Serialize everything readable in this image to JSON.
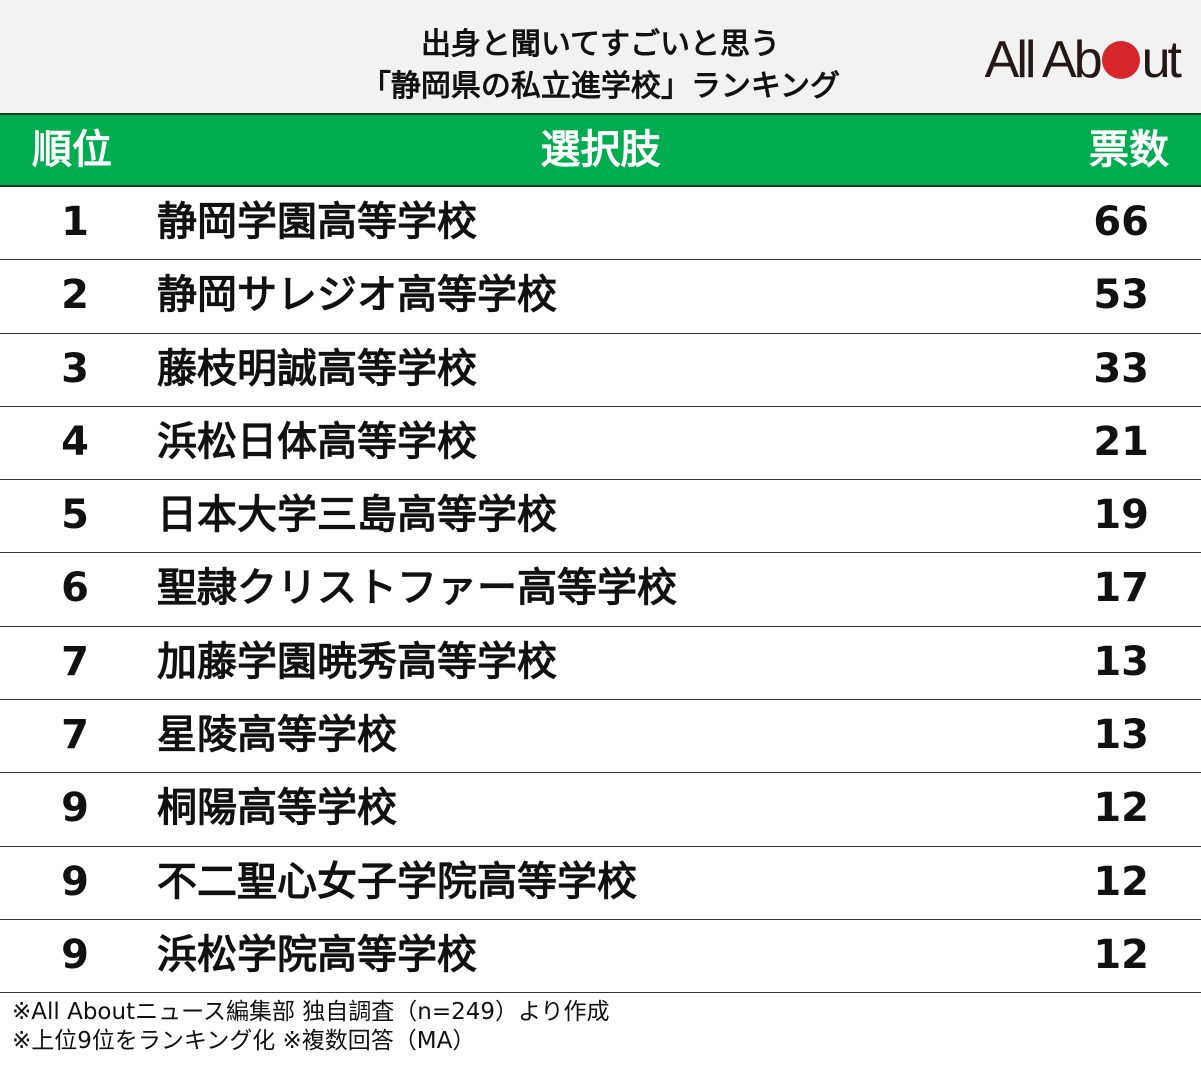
{
  "title": {
    "line1": "出身と聞いてすごいと思う",
    "line2": "「静岡県の私立進学校」ランキング"
  },
  "logo": {
    "text_before": "All Ab",
    "text_after": "ut",
    "brand": "All About",
    "dot_color": "#d7262a"
  },
  "header": {
    "rank": "順位",
    "choice": "選択肢",
    "votes": "票数",
    "color": "#00ad4f"
  },
  "rows": [
    {
      "rank": "1",
      "name": "静岡学園高等学校",
      "votes": "66"
    },
    {
      "rank": "2",
      "name": "静岡サレジオ高等学校",
      "votes": "53"
    },
    {
      "rank": "3",
      "name": "藤枝明誠高等学校",
      "votes": "33"
    },
    {
      "rank": "4",
      "name": "浜松日体高等学校",
      "votes": "21"
    },
    {
      "rank": "5",
      "name": "日本大学三島高等学校",
      "votes": "19"
    },
    {
      "rank": "6",
      "name": "聖隷クリストファー高等学校",
      "votes": "17"
    },
    {
      "rank": "7",
      "name": "加藤学園暁秀高等学校",
      "votes": "13"
    },
    {
      "rank": "7",
      "name": "星陵高等学校",
      "votes": "13"
    },
    {
      "rank": "9",
      "name": "桐陽高等学校",
      "votes": "12"
    },
    {
      "rank": "9",
      "name": "不二聖心女子学院高等学校",
      "votes": "12"
    },
    {
      "rank": "9",
      "name": "浜松学院高等学校",
      "votes": "12"
    }
  ],
  "footer": {
    "line1": "※All Aboutニュース編集部 独自調査（n=249）より作成",
    "line2": "※上位9位をランキング化 ※複数回答（MA）"
  }
}
